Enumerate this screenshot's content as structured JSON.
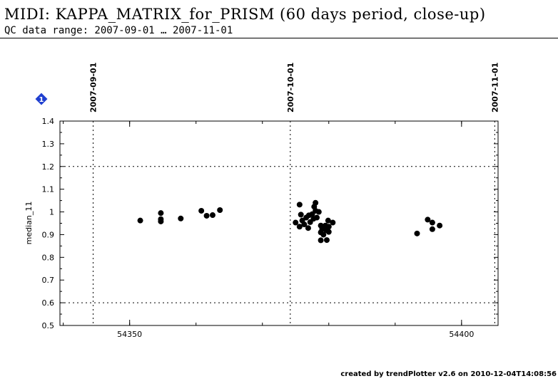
{
  "header": {
    "title": "MIDI: KAPPA_MATRIX_for_PRISM (60 days period, close-up)",
    "subtitle": "QC data range: 2007-09-01 … 2007-11-01"
  },
  "badge": {
    "label": "1",
    "color": "#1f3fd0"
  },
  "footer": {
    "text": "created by trendPlotter v2.6 on 2010-12-04T14:08:56"
  },
  "chart_data": {
    "type": "scatter",
    "title": "",
    "xlabel": "",
    "ylabel": "median_11",
    "xlim": [
      54339.5,
      54405.5
    ],
    "ylim": [
      0.5,
      1.4
    ],
    "xticks": [
      54350,
      54400
    ],
    "yticks": [
      0.5,
      0.6,
      0.7,
      0.8,
      0.9,
      1,
      1.1,
      1.2,
      1.3,
      1.4
    ],
    "reference_lines_y": [
      0.6,
      1.2
    ],
    "date_markers": [
      {
        "label": "2007-09-01",
        "mjd": 54344.5
      },
      {
        "label": "2007-10-01",
        "mjd": 54374.2
      },
      {
        "label": "2007-11-01",
        "mjd": 54405.0
      }
    ],
    "marker_color": "#000000",
    "series": [
      {
        "values": [
          [
            54351.6,
            0.962
          ],
          [
            54354.7,
            0.995
          ],
          [
            54354.7,
            0.968
          ],
          [
            54354.7,
            0.958
          ],
          [
            54357.7,
            0.971
          ],
          [
            54360.8,
            1.005
          ],
          [
            54361.6,
            0.983
          ],
          [
            54362.5,
            0.986
          ],
          [
            54363.6,
            1.008
          ],
          [
            54375.0,
            0.953
          ],
          [
            54375.6,
            1.032
          ],
          [
            54375.6,
            0.935
          ],
          [
            54375.8,
            0.988
          ],
          [
            54376.0,
            0.962
          ],
          [
            54376.3,
            0.945
          ],
          [
            54376.6,
            0.975
          ],
          [
            54376.9,
            0.929
          ],
          [
            54377.0,
            0.985
          ],
          [
            54377.2,
            0.955
          ],
          [
            54377.5,
            0.99
          ],
          [
            54377.7,
            0.97
          ],
          [
            54377.8,
            1.023
          ],
          [
            54378.0,
            1.04
          ],
          [
            54378.0,
            1.005
          ],
          [
            54378.2,
            0.975
          ],
          [
            54378.5,
            1.0
          ],
          [
            54378.8,
            0.94
          ],
          [
            54378.8,
            0.91
          ],
          [
            54378.8,
            0.875
          ],
          [
            54379.0,
            0.925
          ],
          [
            54379.2,
            0.9
          ],
          [
            54379.5,
            0.94
          ],
          [
            54379.6,
            0.92
          ],
          [
            54379.7,
            0.876
          ],
          [
            54379.9,
            0.962
          ],
          [
            54380.0,
            0.912
          ],
          [
            54380.0,
            0.935
          ],
          [
            54380.6,
            0.953
          ],
          [
            54393.3,
            0.905
          ],
          [
            54394.9,
            0.966
          ],
          [
            54395.6,
            0.953
          ],
          [
            54395.6,
            0.924
          ],
          [
            54396.7,
            0.94
          ]
        ]
      }
    ]
  }
}
